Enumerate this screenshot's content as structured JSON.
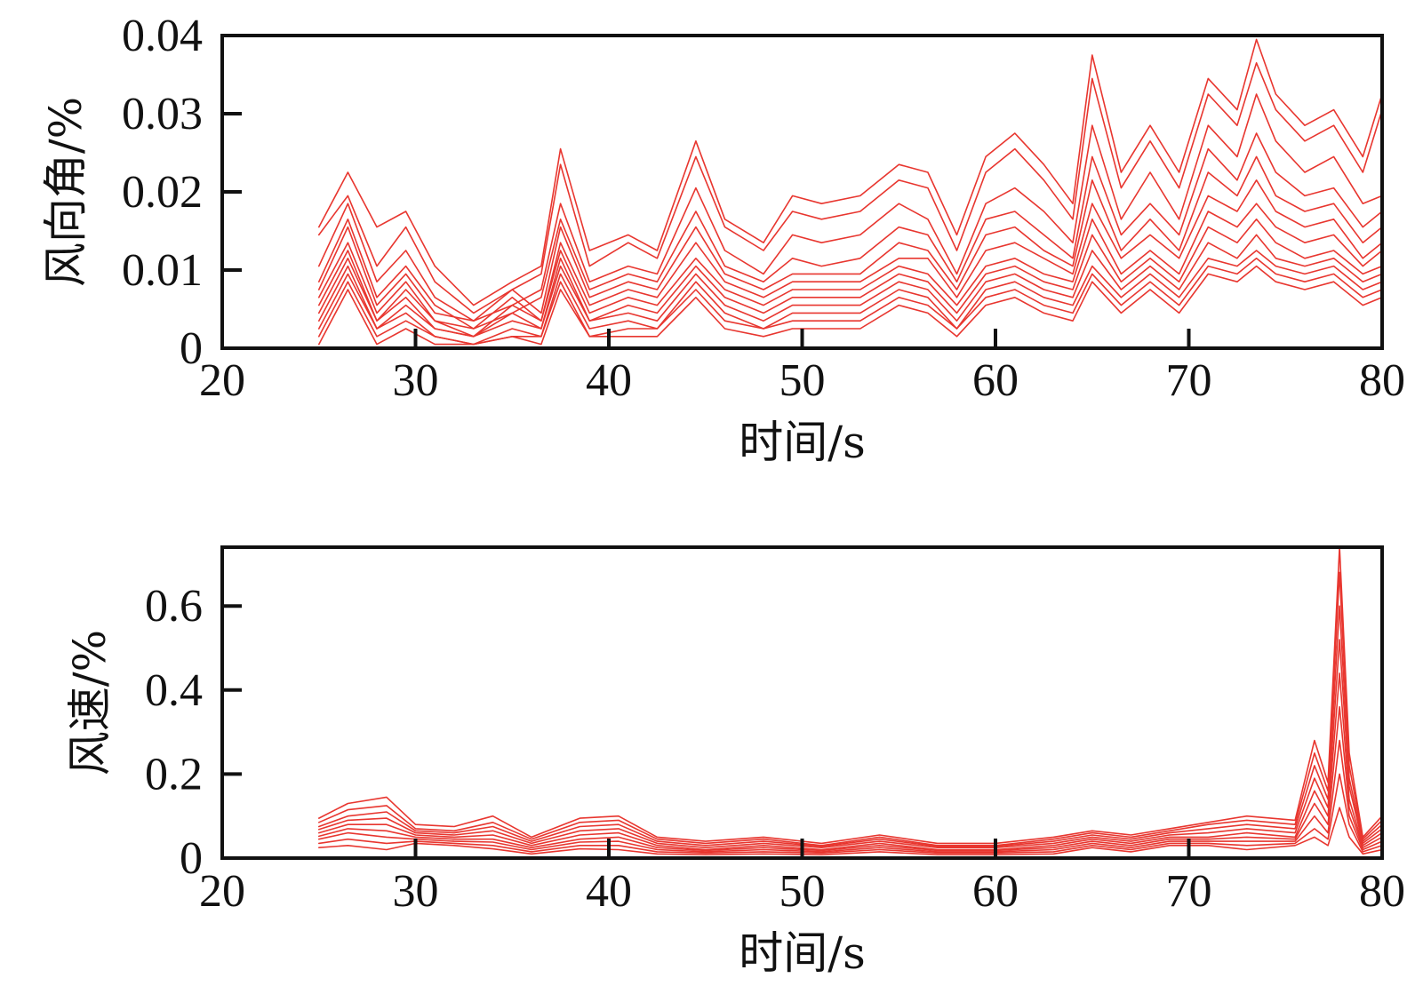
{
  "style": {
    "line_color": "#e8362f",
    "axis_color": "#111111"
  },
  "chart_data": [
    {
      "type": "line",
      "title": "",
      "xlabel": "时间/s",
      "ylabel": "风向角/%",
      "xlim": [
        20,
        80
      ],
      "ylim": [
        0,
        0.04
      ],
      "xticks": [
        20,
        30,
        40,
        50,
        60,
        70,
        80
      ],
      "xtick_labels": [
        "20",
        "30",
        "40",
        "50",
        "60",
        "70",
        "80"
      ],
      "yticks": [
        0,
        0.01,
        0.02,
        0.03,
        0.04
      ],
      "ytick_labels": [
        "0",
        "0.01",
        "0.02",
        "0.03",
        "0.04"
      ],
      "grid": false,
      "legend": "none",
      "x": [
        25,
        26.5,
        28,
        29.5,
        31,
        33,
        35,
        36.5,
        37.5,
        39,
        41,
        42.5,
        44.5,
        46,
        48,
        49.5,
        51,
        53,
        55,
        56.5,
        58,
        59.5,
        61,
        62.5,
        64,
        65,
        66.5,
        68,
        69.5,
        71,
        72.5,
        73.5,
        74.5,
        76,
        77.5,
        79,
        80
      ],
      "series": [
        {
          "values": [
            0.0155,
            0.0225,
            0.0155,
            0.0175,
            0.0105,
            0.0055,
            0.0085,
            0.0105,
            0.0255,
            0.0125,
            0.0145,
            0.0125,
            0.0265,
            0.0165,
            0.0135,
            0.0195,
            0.0185,
            0.0195,
            0.0235,
            0.0225,
            0.0145,
            0.0245,
            0.0275,
            0.0235,
            0.0185,
            0.0375,
            0.0225,
            0.0285,
            0.0225,
            0.0345,
            0.0305,
            0.0395,
            0.0325,
            0.0285,
            0.0305,
            0.0245,
            0.0325
          ]
        },
        {
          "values": [
            0.0145,
            0.0195,
            0.0105,
            0.0155,
            0.0085,
            0.0045,
            0.0075,
            0.0095,
            0.0235,
            0.0105,
            0.0135,
            0.0115,
            0.0245,
            0.0155,
            0.0125,
            0.0175,
            0.0165,
            0.0175,
            0.0215,
            0.0205,
            0.0125,
            0.0225,
            0.0255,
            0.0215,
            0.0165,
            0.0345,
            0.0205,
            0.0265,
            0.0205,
            0.0325,
            0.0285,
            0.0365,
            0.0305,
            0.0265,
            0.0285,
            0.0225,
            0.0305
          ]
        },
        {
          "values": [
            0.0105,
            0.0185,
            0.0085,
            0.0125,
            0.0065,
            0.0035,
            0.0055,
            0.0075,
            0.0185,
            0.0085,
            0.0105,
            0.0095,
            0.0205,
            0.0125,
            0.0095,
            0.0145,
            0.0135,
            0.0145,
            0.0185,
            0.0165,
            0.0095,
            0.0185,
            0.0205,
            0.0175,
            0.0135,
            0.0285,
            0.0165,
            0.0225,
            0.0165,
            0.0285,
            0.0245,
            0.0325,
            0.0265,
            0.0225,
            0.0245,
            0.0185,
            0.0195
          ]
        },
        {
          "values": [
            0.0085,
            0.0165,
            0.0065,
            0.0105,
            0.0055,
            0.0025,
            0.0045,
            0.0065,
            0.0165,
            0.0075,
            0.0095,
            0.0085,
            0.0175,
            0.0105,
            0.0085,
            0.0115,
            0.0105,
            0.0115,
            0.0155,
            0.0145,
            0.0085,
            0.0165,
            0.0175,
            0.0145,
            0.0115,
            0.0245,
            0.0145,
            0.0185,
            0.0145,
            0.0255,
            0.0215,
            0.0275,
            0.0225,
            0.0195,
            0.0205,
            0.0155,
            0.0175
          ]
        },
        {
          "values": [
            0.0075,
            0.0155,
            0.0055,
            0.0095,
            0.0045,
            0.0035,
            0.0075,
            0.0045,
            0.0155,
            0.0065,
            0.0085,
            0.0075,
            0.0155,
            0.0095,
            0.0075,
            0.0095,
            0.0095,
            0.0095,
            0.0135,
            0.0125,
            0.0075,
            0.0145,
            0.0155,
            0.0125,
            0.0105,
            0.0215,
            0.0125,
            0.0165,
            0.0125,
            0.0225,
            0.0195,
            0.0245,
            0.0195,
            0.0175,
            0.0185,
            0.0135,
            0.0155
          ]
        },
        {
          "values": [
            0.0065,
            0.0135,
            0.0045,
            0.0085,
            0.0035,
            0.0025,
            0.0065,
            0.0035,
            0.0135,
            0.0055,
            0.0075,
            0.0065,
            0.0135,
            0.0085,
            0.0065,
            0.0085,
            0.0085,
            0.0085,
            0.0115,
            0.0115,
            0.0065,
            0.0125,
            0.0135,
            0.0115,
            0.0095,
            0.0185,
            0.0115,
            0.0145,
            0.0115,
            0.0195,
            0.0175,
            0.0215,
            0.0175,
            0.0155,
            0.0165,
            0.0115,
            0.0135
          ]
        },
        {
          "values": [
            0.0055,
            0.0125,
            0.0035,
            0.0075,
            0.0035,
            0.0015,
            0.0055,
            0.0035,
            0.0125,
            0.0045,
            0.0065,
            0.0055,
            0.0115,
            0.0075,
            0.0055,
            0.0075,
            0.0075,
            0.0075,
            0.0105,
            0.0095,
            0.0055,
            0.0105,
            0.0115,
            0.0095,
            0.0085,
            0.0165,
            0.0095,
            0.0125,
            0.0095,
            0.0175,
            0.0155,
            0.0185,
            0.0155,
            0.0135,
            0.0145,
            0.0105,
            0.0125
          ]
        },
        {
          "values": [
            0.0045,
            0.0115,
            0.0035,
            0.0065,
            0.0025,
            0.0015,
            0.0045,
            0.0025,
            0.0115,
            0.0035,
            0.0055,
            0.0045,
            0.0105,
            0.0065,
            0.0045,
            0.0065,
            0.0065,
            0.0065,
            0.0095,
            0.0085,
            0.0045,
            0.0095,
            0.0105,
            0.0085,
            0.0075,
            0.0145,
            0.0085,
            0.0115,
            0.0085,
            0.0155,
            0.0135,
            0.0165,
            0.0135,
            0.0115,
            0.0125,
            0.0095,
            0.0105
          ]
        },
        {
          "values": [
            0.0035,
            0.0105,
            0.0025,
            0.0055,
            0.0025,
            0.0015,
            0.0035,
            0.0025,
            0.0105,
            0.0035,
            0.0045,
            0.0035,
            0.0095,
            0.0055,
            0.0035,
            0.0055,
            0.0055,
            0.0055,
            0.0085,
            0.0075,
            0.0035,
            0.0085,
            0.0095,
            0.0075,
            0.0065,
            0.0125,
            0.0075,
            0.0105,
            0.0075,
            0.0135,
            0.0115,
            0.0145,
            0.0115,
            0.0105,
            0.0115,
            0.0085,
            0.0095
          ]
        },
        {
          "values": [
            0.0025,
            0.0095,
            0.0025,
            0.0045,
            0.0015,
            0.0005,
            0.0025,
            0.0015,
            0.0095,
            0.0025,
            0.0035,
            0.0025,
            0.0085,
            0.0045,
            0.0025,
            0.0045,
            0.0045,
            0.0045,
            0.0075,
            0.0065,
            0.0025,
            0.0075,
            0.0085,
            0.0065,
            0.0055,
            0.0105,
            0.0065,
            0.0095,
            0.0065,
            0.0115,
            0.0105,
            0.0125,
            0.0105,
            0.0095,
            0.0105,
            0.0075,
            0.0085
          ]
        },
        {
          "values": [
            0.0015,
            0.0085,
            0.0015,
            0.0035,
            0.0015,
            0.0005,
            0.0015,
            0.0015,
            0.0085,
            0.0015,
            0.0025,
            0.0025,
            0.0075,
            0.0035,
            0.0025,
            0.0035,
            0.0035,
            0.0035,
            0.0065,
            0.0055,
            0.0025,
            0.0065,
            0.0075,
            0.0055,
            0.0045,
            0.0095,
            0.0055,
            0.0085,
            0.0055,
            0.0105,
            0.0095,
            0.0115,
            0.0095,
            0.0085,
            0.0095,
            0.0065,
            0.0075
          ]
        },
        {
          "values": [
            0.0005,
            0.0075,
            0.0005,
            0.0025,
            0.0005,
            0.0005,
            0.0015,
            0.0005,
            0.0075,
            0.0015,
            0.0015,
            0.0015,
            0.0065,
            0.0025,
            0.0015,
            0.0025,
            0.0025,
            0.0025,
            0.0055,
            0.0045,
            0.0015,
            0.0055,
            0.0065,
            0.0045,
            0.0035,
            0.0085,
            0.0045,
            0.0075,
            0.0045,
            0.0095,
            0.0085,
            0.0105,
            0.0085,
            0.0075,
            0.0085,
            0.0055,
            0.0065
          ]
        }
      ]
    },
    {
      "type": "line",
      "title": "",
      "xlabel": "时间/s",
      "ylabel": "风速/%",
      "xlim": [
        20,
        80
      ],
      "ylim": [
        0,
        0.74
      ],
      "xticks": [
        20,
        30,
        40,
        50,
        60,
        70,
        80
      ],
      "xtick_labels": [
        "20",
        "30",
        "40",
        "50",
        "60",
        "70",
        "80"
      ],
      "yticks": [
        0,
        0.2,
        0.4,
        0.6
      ],
      "ytick_labels": [
        "0",
        "0.2",
        "0.4",
        "0.6"
      ],
      "grid": false,
      "legend": "none",
      "x": [
        25,
        26.5,
        28.5,
        30,
        32,
        34,
        36,
        38.5,
        40.5,
        42.5,
        45,
        48,
        51,
        54,
        57,
        60,
        63,
        65,
        67,
        69,
        71,
        73,
        75.5,
        76.5,
        77.2,
        77.8,
        78.3,
        79,
        80
      ],
      "series": [
        {
          "values": [
            0.095,
            0.13,
            0.145,
            0.08,
            0.075,
            0.1,
            0.05,
            0.095,
            0.1,
            0.05,
            0.04,
            0.05,
            0.035,
            0.055,
            0.035,
            0.035,
            0.05,
            0.065,
            0.055,
            0.07,
            0.085,
            0.1,
            0.09,
            0.28,
            0.18,
            0.74,
            0.25,
            0.05,
            0.1
          ]
        },
        {
          "values": [
            0.085,
            0.115,
            0.125,
            0.07,
            0.065,
            0.085,
            0.045,
            0.085,
            0.09,
            0.045,
            0.035,
            0.045,
            0.03,
            0.05,
            0.03,
            0.03,
            0.045,
            0.06,
            0.05,
            0.065,
            0.08,
            0.09,
            0.08,
            0.25,
            0.16,
            0.68,
            0.22,
            0.045,
            0.09
          ]
        },
        {
          "values": [
            0.075,
            0.1,
            0.11,
            0.065,
            0.06,
            0.075,
            0.04,
            0.075,
            0.08,
            0.04,
            0.03,
            0.04,
            0.028,
            0.045,
            0.028,
            0.028,
            0.04,
            0.055,
            0.045,
            0.06,
            0.07,
            0.08,
            0.07,
            0.22,
            0.14,
            0.6,
            0.19,
            0.04,
            0.08
          ]
        },
        {
          "values": [
            0.068,
            0.09,
            0.095,
            0.06,
            0.055,
            0.065,
            0.035,
            0.065,
            0.07,
            0.035,
            0.025,
            0.035,
            0.025,
            0.04,
            0.025,
            0.025,
            0.035,
            0.05,
            0.04,
            0.055,
            0.06,
            0.07,
            0.06,
            0.19,
            0.12,
            0.52,
            0.17,
            0.035,
            0.07
          ]
        },
        {
          "values": [
            0.06,
            0.08,
            0.08,
            0.055,
            0.05,
            0.055,
            0.03,
            0.055,
            0.06,
            0.03,
            0.02,
            0.03,
            0.02,
            0.035,
            0.02,
            0.02,
            0.03,
            0.045,
            0.035,
            0.05,
            0.05,
            0.06,
            0.05,
            0.16,
            0.1,
            0.44,
            0.14,
            0.03,
            0.06
          ]
        },
        {
          "values": [
            0.052,
            0.07,
            0.065,
            0.05,
            0.045,
            0.045,
            0.025,
            0.045,
            0.05,
            0.025,
            0.018,
            0.025,
            0.018,
            0.03,
            0.018,
            0.018,
            0.025,
            0.04,
            0.03,
            0.045,
            0.045,
            0.05,
            0.045,
            0.13,
            0.08,
            0.36,
            0.12,
            0.025,
            0.05
          ]
        },
        {
          "values": [
            0.045,
            0.06,
            0.05,
            0.045,
            0.04,
            0.038,
            0.02,
            0.038,
            0.04,
            0.02,
            0.015,
            0.02,
            0.015,
            0.025,
            0.015,
            0.015,
            0.02,
            0.035,
            0.025,
            0.04,
            0.04,
            0.04,
            0.04,
            0.1,
            0.06,
            0.28,
            0.1,
            0.02,
            0.04
          ]
        },
        {
          "values": [
            0.035,
            0.045,
            0.035,
            0.04,
            0.035,
            0.03,
            0.015,
            0.03,
            0.03,
            0.015,
            0.012,
            0.015,
            0.012,
            0.02,
            0.012,
            0.012,
            0.015,
            0.03,
            0.02,
            0.035,
            0.035,
            0.03,
            0.035,
            0.07,
            0.045,
            0.2,
            0.08,
            0.015,
            0.03
          ]
        },
        {
          "values": [
            0.025,
            0.03,
            0.02,
            0.035,
            0.03,
            0.022,
            0.01,
            0.022,
            0.02,
            0.01,
            0.008,
            0.01,
            0.008,
            0.015,
            0.008,
            0.008,
            0.01,
            0.025,
            0.015,
            0.03,
            0.03,
            0.02,
            0.03,
            0.05,
            0.03,
            0.12,
            0.05,
            0.01,
            0.02
          ]
        }
      ]
    }
  ]
}
